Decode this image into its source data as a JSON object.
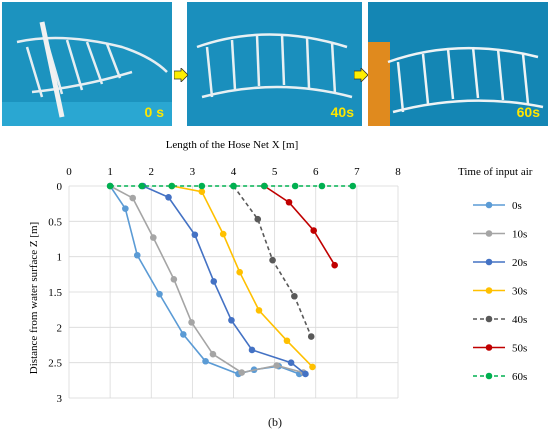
{
  "photos": [
    {
      "label": "0 s"
    },
    {
      "label": "40s"
    },
    {
      "label": "60s"
    }
  ],
  "caption": "(b)",
  "colors": {
    "arrow": "#ffee00",
    "grid": "#d9d9d9"
  },
  "chart_data": {
    "type": "line",
    "xlabel": "Length of the Hose Net X [m]",
    "ylabel": "Distance from water surface Z [m]",
    "legend_title": "Time of input air",
    "legend_position": "right",
    "x_axis_position": "top",
    "y_inverted": true,
    "grid": true,
    "xlim": [
      0,
      8
    ],
    "ylim": [
      0,
      3
    ],
    "xticks": [
      "0",
      "1",
      "2",
      "3",
      "4",
      "5",
      "6",
      "7",
      "8"
    ],
    "yticks": [
      "0",
      "0.5",
      "1",
      "1.5",
      "2",
      "2.5",
      "3"
    ],
    "series": [
      {
        "name": "0s",
        "color": "#5b9bd5",
        "dash": false,
        "points": [
          [
            1.0,
            0.0
          ],
          [
            1.37,
            0.32
          ],
          [
            1.66,
            0.98
          ],
          [
            2.2,
            1.53
          ],
          [
            2.78,
            2.1
          ],
          [
            3.32,
            2.48
          ],
          [
            4.12,
            2.66
          ],
          [
            4.5,
            2.6
          ],
          [
            5.1,
            2.55
          ],
          [
            5.6,
            2.66
          ]
        ]
      },
      {
        "name": "10s",
        "color": "#a5a5a5",
        "dash": false,
        "points": [
          [
            1.0,
            0.0
          ],
          [
            1.55,
            0.17
          ],
          [
            2.05,
            0.73
          ],
          [
            2.55,
            1.32
          ],
          [
            2.98,
            1.93
          ],
          [
            3.5,
            2.38
          ],
          [
            4.2,
            2.64
          ],
          [
            5.05,
            2.54
          ],
          [
            5.7,
            2.64
          ]
        ]
      },
      {
        "name": "20s",
        "color": "#4472c4",
        "dash": false,
        "points": [
          [
            1.8,
            0.0
          ],
          [
            2.42,
            0.16
          ],
          [
            3.06,
            0.69
          ],
          [
            3.52,
            1.35
          ],
          [
            3.95,
            1.9
          ],
          [
            4.45,
            2.32
          ],
          [
            5.4,
            2.5
          ],
          [
            5.75,
            2.66
          ]
        ]
      },
      {
        "name": "30s",
        "color": "#ffc000",
        "dash": false,
        "points": [
          [
            2.5,
            0.0
          ],
          [
            3.23,
            0.08
          ],
          [
            3.75,
            0.68
          ],
          [
            4.15,
            1.22
          ],
          [
            4.62,
            1.76
          ],
          [
            5.3,
            2.19
          ],
          [
            5.92,
            2.56
          ]
        ]
      },
      {
        "name": "40s",
        "color": "#595959",
        "dash": true,
        "points": [
          [
            4.0,
            0.0
          ],
          [
            4.59,
            0.47
          ],
          [
            4.95,
            1.05
          ],
          [
            5.48,
            1.56
          ],
          [
            5.89,
            2.13
          ]
        ]
      },
      {
        "name": "50s",
        "color": "#c00000",
        "dash": false,
        "points": [
          [
            4.75,
            0.0
          ],
          [
            5.35,
            0.23
          ],
          [
            5.95,
            0.63
          ],
          [
            6.46,
            1.12
          ]
        ]
      },
      {
        "name": "60s",
        "color": "#00b050",
        "dash": true,
        "points": [
          [
            1.0,
            0.0
          ],
          [
            1.77,
            0.0
          ],
          [
            2.5,
            0.0
          ],
          [
            3.23,
            0.0
          ],
          [
            4.0,
            0.0
          ],
          [
            4.75,
            0.0
          ],
          [
            5.5,
            0.0
          ],
          [
            6.15,
            0.0
          ],
          [
            6.9,
            0.0
          ]
        ]
      }
    ]
  }
}
